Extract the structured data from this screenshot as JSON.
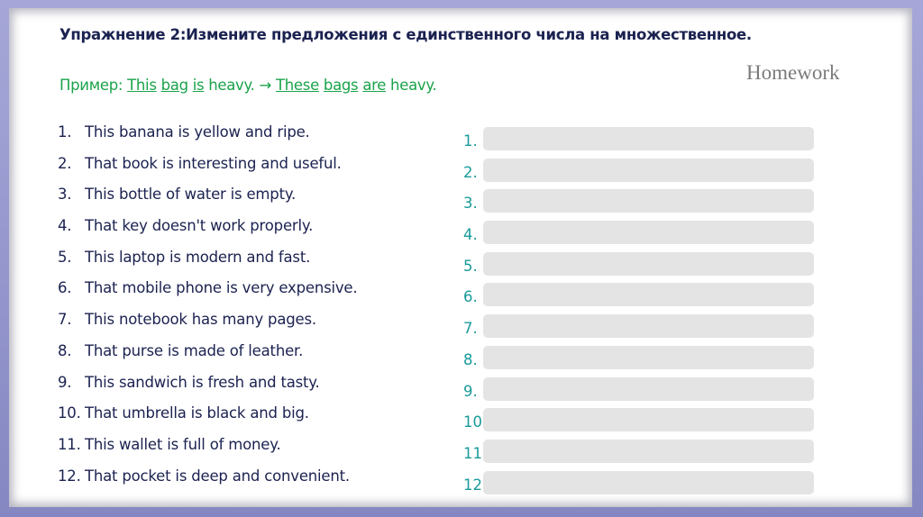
{
  "title": "Упражнение 2:Измените предложения с единственного числа на множественное.",
  "example": {
    "label": "Пример: ",
    "w1": "This",
    "w2": "bag",
    "w3": "is",
    "rest1": " heavy. → ",
    "w4": "These",
    "w5": "bags",
    "w6": "are",
    "rest2": " heavy."
  },
  "homework": "Homework",
  "sentences": [
    {
      "n": "1.",
      "text": "This banana is yellow and ripe."
    },
    {
      "n": "2.",
      "text": "That book is interesting and useful."
    },
    {
      "n": "3.",
      "text": "This bottle of water is empty."
    },
    {
      "n": "4.",
      "text": "That key doesn't work properly."
    },
    {
      "n": "5.",
      "text": "This laptop is modern and fast."
    },
    {
      "n": "6.",
      "text": "That mobile phone is very expensive."
    },
    {
      "n": "7.",
      "text": "This notebook has many pages."
    },
    {
      "n": "8.",
      "text": "That purse is made of leather."
    },
    {
      "n": "9.",
      "text": "This sandwich is fresh and tasty."
    },
    {
      "n": "10.",
      "text": "That umbrella is black and big."
    },
    {
      "n": "11.",
      "text": "This wallet is full of money."
    },
    {
      "n": "12.",
      "text": "That pocket is deep and convenient."
    }
  ],
  "answers": [
    "1.",
    "2.",
    "3.",
    "4.",
    "5.",
    "6.",
    "7.",
    "8.",
    "9.",
    "10.",
    "11.",
    "12"
  ],
  "colors": {
    "title": "#1b2250",
    "example": "#1aa34a",
    "answer_numbers": "#1a9a9a",
    "answer_box": "#e4e4e4",
    "frame": "#9a9bd0"
  }
}
